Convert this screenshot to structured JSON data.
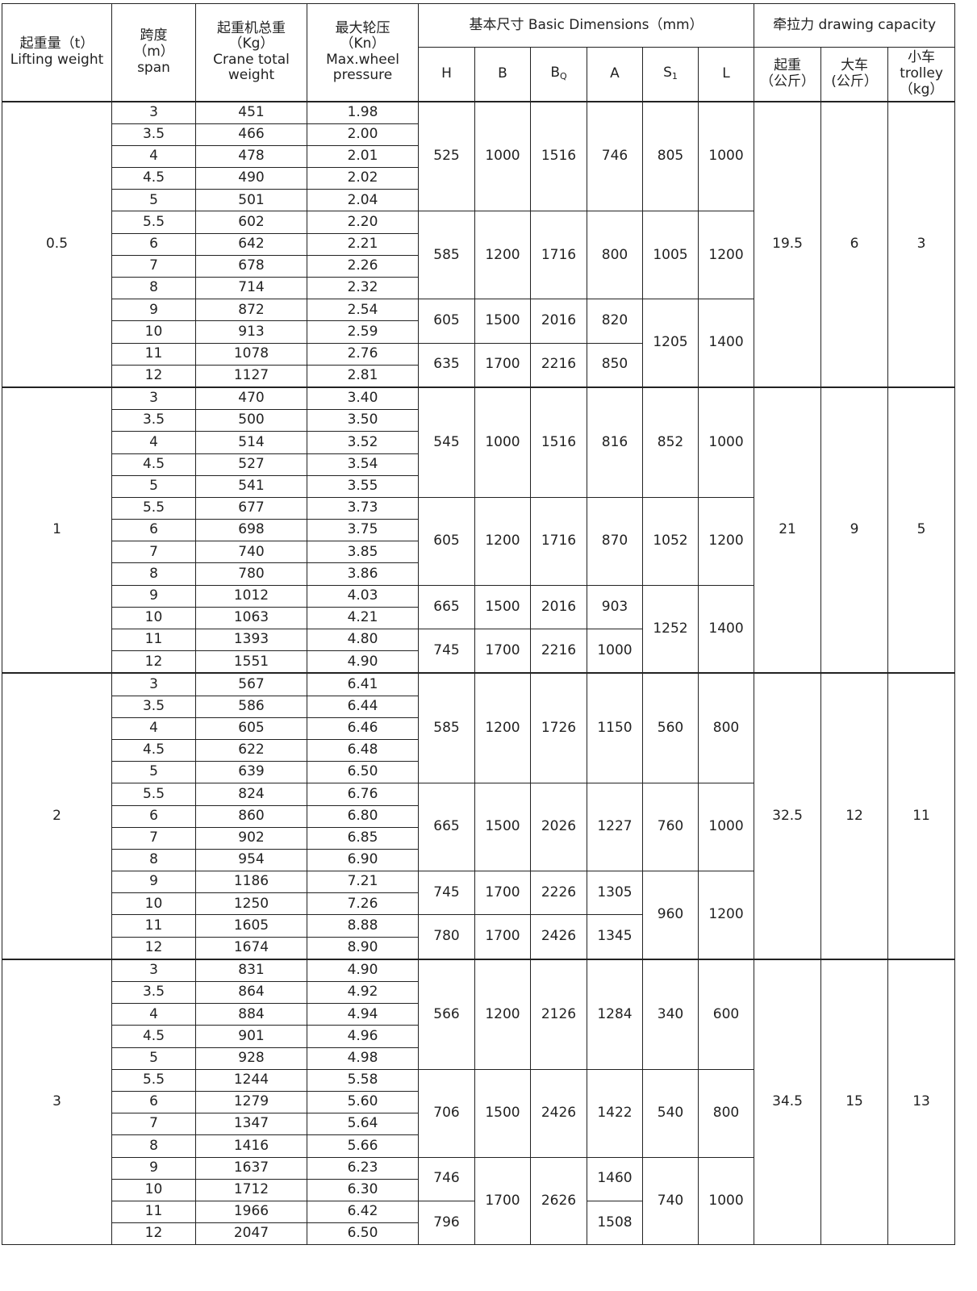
{
  "header": {
    "lifting_weight": [
      "起重量（t）",
      "Lifting weight"
    ],
    "span": [
      "跨度",
      "（m）",
      "span"
    ],
    "crane_weight": [
      "起重机总重",
      "（Kg）",
      "Crane total",
      "weight"
    ],
    "wheel_pressure": [
      "最大轮压",
      "（Kn）",
      "Max.wheel",
      "pressure"
    ],
    "basic_dimensions": "基本尺寸 Basic Dimensions（mm）",
    "dims": [
      {
        "main": "H",
        "sub": ""
      },
      {
        "main": "B",
        "sub": ""
      },
      {
        "main": "B",
        "sub": "Q"
      },
      {
        "main": "A",
        "sub": ""
      },
      {
        "main": "S",
        "sub": "1"
      },
      {
        "main": "L",
        "sub": ""
      }
    ],
    "drawing_capacity": "牵拉力  drawing capacity",
    "cap_cols": [
      [
        "起重",
        "（公斤）"
      ],
      [
        "大车",
        "(公斤）"
      ],
      [
        "小车",
        "trolley",
        "（kg）"
      ]
    ]
  },
  "groups": [
    {
      "lifting": "0.5",
      "capacity": [
        "19.5",
        "6",
        "3"
      ],
      "rows": [
        [
          "3",
          "451",
          "1.98"
        ],
        [
          "3.5",
          "466",
          "2.00"
        ],
        [
          "4",
          "478",
          "2.01"
        ],
        [
          "4.5",
          "490",
          "2.02"
        ],
        [
          "5",
          "501",
          "2.04"
        ],
        [
          "5.5",
          "602",
          "2.20"
        ],
        [
          "6",
          "642",
          "2.21"
        ],
        [
          "7",
          "678",
          "2.26"
        ],
        [
          "8",
          "714",
          "2.32"
        ],
        [
          "9",
          "872",
          "2.54"
        ],
        [
          "10",
          "913",
          "2.59"
        ],
        [
          "11",
          "1078",
          "2.76"
        ],
        [
          "12",
          "1127",
          "2.81"
        ]
      ],
      "dims": [
        [
          {
            "v": "525",
            "rows": 5
          },
          {
            "v": "585",
            "rows": 4
          },
          {
            "v": "605",
            "rows": 2
          },
          {
            "v": "635",
            "rows": 2
          }
        ],
        [
          {
            "v": "1000",
            "rows": 5
          },
          {
            "v": "1200",
            "rows": 4
          },
          {
            "v": "1500",
            "rows": 2
          },
          {
            "v": "1700",
            "rows": 2
          }
        ],
        [
          {
            "v": "1516",
            "rows": 5
          },
          {
            "v": "1716",
            "rows": 4
          },
          {
            "v": "2016",
            "rows": 2
          },
          {
            "v": "2216",
            "rows": 2
          }
        ],
        [
          {
            "v": "746",
            "rows": 5
          },
          {
            "v": "800",
            "rows": 4
          },
          {
            "v": "820",
            "rows": 2
          },
          {
            "v": "850",
            "rows": 2
          }
        ],
        [
          {
            "v": "805",
            "rows": 5
          },
          {
            "v": "1005",
            "rows": 4
          },
          {
            "v": "1205",
            "rows": 4
          }
        ],
        [
          {
            "v": "1000",
            "rows": 5
          },
          {
            "v": "1200",
            "rows": 4
          },
          {
            "v": "1400",
            "rows": 4
          }
        ]
      ]
    },
    {
      "lifting": "1",
      "capacity": [
        "21",
        "9",
        "5"
      ],
      "rows": [
        [
          "3",
          "470",
          "3.40"
        ],
        [
          "3.5",
          "500",
          "3.50"
        ],
        [
          "4",
          "514",
          "3.52"
        ],
        [
          "4.5",
          "527",
          "3.54"
        ],
        [
          "5",
          "541",
          "3.55"
        ],
        [
          "5.5",
          "677",
          "3.73"
        ],
        [
          "6",
          "698",
          "3.75"
        ],
        [
          "7",
          "740",
          "3.85"
        ],
        [
          "8",
          "780",
          "3.86"
        ],
        [
          "9",
          "1012",
          "4.03"
        ],
        [
          "10",
          "1063",
          "4.21"
        ],
        [
          "11",
          "1393",
          "4.80"
        ],
        [
          "12",
          "1551",
          "4.90"
        ]
      ],
      "dims": [
        [
          {
            "v": "545",
            "rows": 5
          },
          {
            "v": "605",
            "rows": 4
          },
          {
            "v": "665",
            "rows": 2
          },
          {
            "v": "745",
            "rows": 2
          }
        ],
        [
          {
            "v": "1000",
            "rows": 5
          },
          {
            "v": "1200",
            "rows": 4
          },
          {
            "v": "1500",
            "rows": 2
          },
          {
            "v": "1700",
            "rows": 2
          }
        ],
        [
          {
            "v": "1516",
            "rows": 5
          },
          {
            "v": "1716",
            "rows": 4
          },
          {
            "v": "2016",
            "rows": 2
          },
          {
            "v": "2216",
            "rows": 2
          }
        ],
        [
          {
            "v": "816",
            "rows": 5
          },
          {
            "v": "870",
            "rows": 4
          },
          {
            "v": "903",
            "rows": 2
          },
          {
            "v": "1000",
            "rows": 2
          }
        ],
        [
          {
            "v": "852",
            "rows": 5
          },
          {
            "v": "1052",
            "rows": 4
          },
          {
            "v": "1252",
            "rows": 4
          }
        ],
        [
          {
            "v": "1000",
            "rows": 5
          },
          {
            "v": "1200",
            "rows": 4
          },
          {
            "v": "1400",
            "rows": 4
          }
        ]
      ]
    },
    {
      "lifting": "2",
      "capacity": [
        "32.5",
        "12",
        "11"
      ],
      "rows": [
        [
          "3",
          "567",
          "6.41"
        ],
        [
          "3.5",
          "586",
          "6.44"
        ],
        [
          "4",
          "605",
          "6.46"
        ],
        [
          "4.5",
          "622",
          "6.48"
        ],
        [
          "5",
          "639",
          "6.50"
        ],
        [
          "5.5",
          "824",
          "6.76"
        ],
        [
          "6",
          "860",
          "6.80"
        ],
        [
          "7",
          "902",
          "6.85"
        ],
        [
          "8",
          "954",
          "6.90"
        ],
        [
          "9",
          "1186",
          "7.21"
        ],
        [
          "10",
          "1250",
          "7.26"
        ],
        [
          "11",
          "1605",
          "8.88"
        ],
        [
          "12",
          "1674",
          "8.90"
        ]
      ],
      "dims": [
        [
          {
            "v": "585",
            "rows": 5
          },
          {
            "v": "665",
            "rows": 4
          },
          {
            "v": "745",
            "rows": 2
          },
          {
            "v": "780",
            "rows": 2
          }
        ],
        [
          {
            "v": "1200",
            "rows": 5
          },
          {
            "v": "1500",
            "rows": 4
          },
          {
            "v": "1700",
            "rows": 2
          },
          {
            "v": "1700",
            "rows": 2
          }
        ],
        [
          {
            "v": "1726",
            "rows": 5
          },
          {
            "v": "2026",
            "rows": 4
          },
          {
            "v": "2226",
            "rows": 2
          },
          {
            "v": "2426",
            "rows": 2
          }
        ],
        [
          {
            "v": "1150",
            "rows": 5
          },
          {
            "v": "1227",
            "rows": 4
          },
          {
            "v": "1305",
            "rows": 2
          },
          {
            "v": "1345",
            "rows": 2
          }
        ],
        [
          {
            "v": "560",
            "rows": 5
          },
          {
            "v": "760",
            "rows": 4
          },
          {
            "v": "960",
            "rows": 4
          }
        ],
        [
          {
            "v": "800",
            "rows": 5
          },
          {
            "v": "1000",
            "rows": 4
          },
          {
            "v": "1200",
            "rows": 4
          }
        ]
      ]
    },
    {
      "lifting": "3",
      "capacity": [
        "34.5",
        "15",
        "13"
      ],
      "rows": [
        [
          "3",
          "831",
          "4.90"
        ],
        [
          "3.5",
          "864",
          "4.92"
        ],
        [
          "4",
          "884",
          "4.94"
        ],
        [
          "4.5",
          "901",
          "4.96"
        ],
        [
          "5",
          "928",
          "4.98"
        ],
        [
          "5.5",
          "1244",
          "5.58"
        ],
        [
          "6",
          "1279",
          "5.60"
        ],
        [
          "7",
          "1347",
          "5.64"
        ],
        [
          "8",
          "1416",
          "5.66"
        ],
        [
          "9",
          "1637",
          "6.23"
        ],
        [
          "10",
          "1712",
          "6.30"
        ],
        [
          "11",
          "1966",
          "6.42"
        ],
        [
          "12",
          "2047",
          "6.50"
        ]
      ],
      "dims": [
        [
          {
            "v": "566",
            "rows": 5
          },
          {
            "v": "706",
            "rows": 4
          },
          {
            "v": "746",
            "rows": 2
          },
          {
            "v": "796",
            "rows": 2
          }
        ],
        [
          {
            "v": "1200",
            "rows": 5
          },
          {
            "v": "1500",
            "rows": 4
          },
          {
            "v": "1700",
            "rows": 4
          }
        ],
        [
          {
            "v": "2126",
            "rows": 5
          },
          {
            "v": "2426",
            "rows": 4
          },
          {
            "v": "2626",
            "rows": 4
          }
        ],
        [
          {
            "v": "1284",
            "rows": 5
          },
          {
            "v": "1422",
            "rows": 4
          },
          {
            "v": "1460",
            "rows": 2
          },
          {
            "v": "1508",
            "rows": 2
          }
        ],
        [
          {
            "v": "340",
            "rows": 5
          },
          {
            "v": "540",
            "rows": 4
          },
          {
            "v": "740",
            "rows": 4
          }
        ],
        [
          {
            "v": "600",
            "rows": 5
          },
          {
            "v": "800",
            "rows": 4
          },
          {
            "v": "1000",
            "rows": 4
          }
        ]
      ]
    }
  ]
}
